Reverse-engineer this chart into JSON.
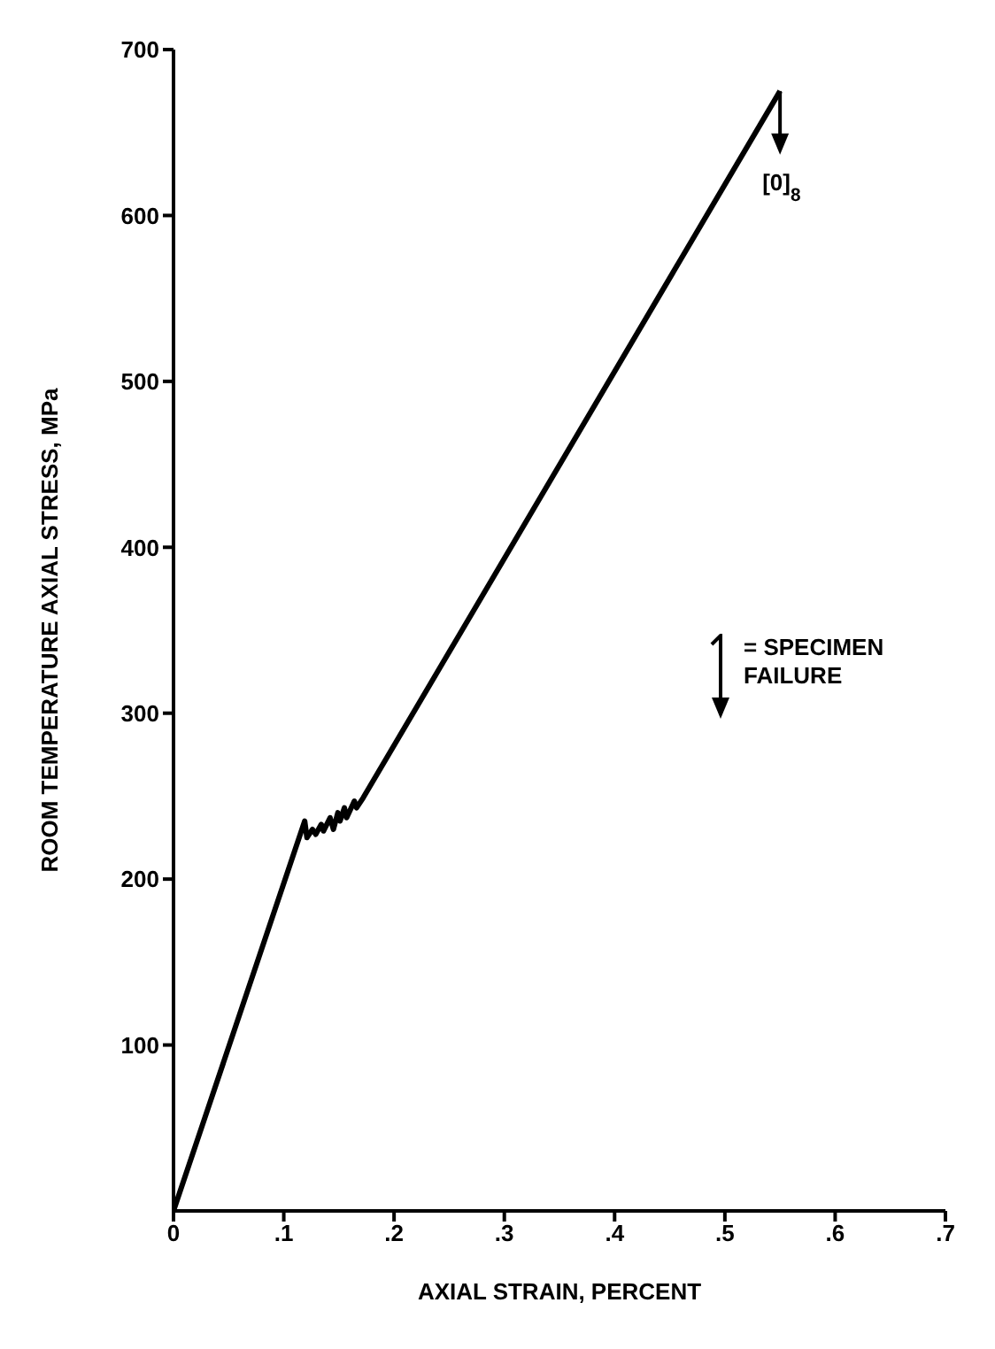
{
  "chart_data": {
    "type": "line",
    "xlabel": "AXIAL STRAIN, PERCENT",
    "ylabel": "ROOM TEMPERATURE AXIAL STRESS, MPa",
    "x": [
      0,
      0.119,
      0.121,
      0.126,
      0.129,
      0.134,
      0.136,
      0.142,
      0.145,
      0.149,
      0.151,
      0.155,
      0.157,
      0.164,
      0.166,
      0.172,
      0.55
    ],
    "series": [
      {
        "color": "#000000",
        "values": [
          0,
          235,
          225,
          230,
          227,
          233,
          229,
          237,
          230,
          240,
          235,
          243,
          237,
          247,
          243,
          249,
          675
        ]
      }
    ],
    "xlim": [
      0,
      0.7
    ],
    "ylim": [
      0,
      700
    ],
    "xticks": [
      {
        "value": 0,
        "label": "0"
      },
      {
        "value": 0.1,
        "label": ".1"
      },
      {
        "value": 0.2,
        "label": ".2"
      },
      {
        "value": 0.3,
        "label": ".3"
      },
      {
        "value": 0.4,
        "label": ".4"
      },
      {
        "value": 0.5,
        "label": ".5"
      },
      {
        "value": 0.6,
        "label": ".6"
      },
      {
        "value": 0.7,
        "label": ".7"
      }
    ],
    "yticks": [
      100,
      200,
      300,
      400,
      500,
      600,
      700
    ],
    "annotations": [
      {
        "text": "[0]$_{8}$",
        "x": 0.55,
        "y": 675
      },
      "= SPECIMEN FAILURE"
    ]
  }
}
